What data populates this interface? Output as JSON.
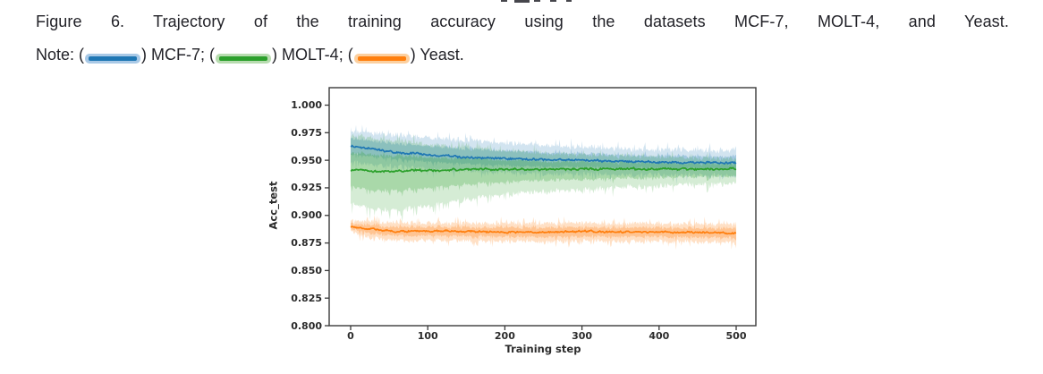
{
  "caption": {
    "line1": "Figure 6. Trajectory of the training accuracy using the datasets MCF-7, MOLT-4, and Yeast.",
    "note_prefix": "Note: (",
    "after_swatch1": ") MCF-7; (",
    "after_swatch2": ") MOLT-4; (",
    "after_swatch3": ") Yeast."
  },
  "legend": {
    "entries": [
      {
        "label": "MCF-7",
        "color": "#1f77b4",
        "halo": "#a9c9e6"
      },
      {
        "label": "MOLT-4",
        "color": "#2ca02c",
        "halo": "#b8dcb0"
      },
      {
        "label": "Yeast",
        "color": "#ff7f0e",
        "halo": "#fcd0a0"
      }
    ]
  },
  "chart_data": {
    "type": "line",
    "title": "",
    "xlabel": "Training step",
    "ylabel": "Acc_test",
    "xlim": [
      -28,
      525
    ],
    "ylim": [
      0.8,
      1.016
    ],
    "x_ticks": [
      0,
      100,
      200,
      300,
      400,
      500
    ],
    "y_ticks": [
      1.0,
      0.975,
      0.95,
      0.925,
      0.9,
      0.875,
      0.85,
      0.825,
      0.8
    ],
    "y_tick_labels": [
      "1.000",
      "0.975",
      "0.950",
      "0.925",
      "0.900",
      "0.875",
      "0.850",
      "0.825",
      "0.800"
    ],
    "grid": false,
    "legend_position": "caption-note",
    "series": [
      {
        "name": "MCF-7",
        "color": "#1f77b4",
        "mean": [
          [
            0,
            0.9625
          ],
          [
            30,
            0.96
          ],
          [
            60,
            0.9575
          ],
          [
            100,
            0.955
          ],
          [
            150,
            0.9525
          ],
          [
            200,
            0.9515
          ],
          [
            250,
            0.9505
          ],
          [
            300,
            0.95
          ],
          [
            350,
            0.949
          ],
          [
            400,
            0.9485
          ],
          [
            450,
            0.948
          ],
          [
            500,
            0.9475
          ]
        ],
        "band_top": [
          [
            0,
            0.9765
          ],
          [
            50,
            0.9735
          ],
          [
            100,
            0.9705
          ],
          [
            150,
            0.968
          ],
          [
            200,
            0.9655
          ],
          [
            250,
            0.9635
          ],
          [
            300,
            0.962
          ],
          [
            350,
            0.9605
          ],
          [
            400,
            0.9595
          ],
          [
            450,
            0.959
          ],
          [
            500,
            0.9585
          ]
        ],
        "band_bottom": [
          [
            0,
            0.9485
          ],
          [
            50,
            0.945
          ],
          [
            100,
            0.9425
          ],
          [
            150,
            0.9405
          ],
          [
            200,
            0.939
          ],
          [
            250,
            0.938
          ],
          [
            300,
            0.9375
          ],
          [
            350,
            0.937
          ],
          [
            400,
            0.9365
          ],
          [
            450,
            0.9365
          ],
          [
            500,
            0.936
          ]
        ],
        "noise": {
          "line": 0.0015,
          "band": 0.0032,
          "spike": 0.0065,
          "early_spike": 0,
          "early_until": 0
        },
        "band_alpha_wide": 0.2,
        "band_alpha_tight": 0.26
      },
      {
        "name": "MOLT-4",
        "color": "#2ca02c",
        "mean": [
          [
            0,
            0.9415
          ],
          [
            30,
            0.9398
          ],
          [
            60,
            0.9402
          ],
          [
            100,
            0.9408
          ],
          [
            150,
            0.9413
          ],
          [
            200,
            0.9417
          ],
          [
            300,
            0.942
          ],
          [
            400,
            0.942
          ],
          [
            500,
            0.942
          ]
        ],
        "band_top": [
          [
            0,
            0.9725
          ],
          [
            50,
            0.968
          ],
          [
            100,
            0.9645
          ],
          [
            150,
            0.961
          ],
          [
            200,
            0.9585
          ],
          [
            250,
            0.9565
          ],
          [
            300,
            0.955
          ],
          [
            350,
            0.9535
          ],
          [
            400,
            0.9525
          ],
          [
            450,
            0.952
          ],
          [
            500,
            0.9515
          ]
        ],
        "band_bottom": [
          [
            0,
            0.9095
          ],
          [
            40,
            0.9045
          ],
          [
            80,
            0.9065
          ],
          [
            120,
            0.9115
          ],
          [
            160,
            0.9155
          ],
          [
            200,
            0.919
          ],
          [
            250,
            0.9215
          ],
          [
            300,
            0.9235
          ],
          [
            350,
            0.9255
          ],
          [
            400,
            0.927
          ],
          [
            450,
            0.928
          ],
          [
            500,
            0.929
          ]
        ],
        "noise": {
          "line": 0.0015,
          "band": 0.0032,
          "spike": 0.007,
          "early_spike": 0.01,
          "early_until": 130
        },
        "band_alpha_wide": 0.2,
        "band_alpha_tight": 0.26
      },
      {
        "name": "Yeast",
        "color": "#ff7f0e",
        "mean": [
          [
            0,
            0.8895
          ],
          [
            30,
            0.8872
          ],
          [
            60,
            0.8855
          ],
          [
            100,
            0.886
          ],
          [
            150,
            0.8855
          ],
          [
            200,
            0.885
          ],
          [
            250,
            0.8845
          ],
          [
            300,
            0.8855
          ],
          [
            350,
            0.885
          ],
          [
            400,
            0.885
          ],
          [
            450,
            0.8845
          ],
          [
            500,
            0.884
          ]
        ],
        "band_top": [
          [
            0,
            0.8945
          ],
          [
            50,
            0.8935
          ],
          [
            100,
            0.893
          ],
          [
            200,
            0.8925
          ],
          [
            300,
            0.893
          ],
          [
            400,
            0.8925
          ],
          [
            500,
            0.892
          ]
        ],
        "band_bottom": [
          [
            0,
            0.8845
          ],
          [
            30,
            0.8795
          ],
          [
            60,
            0.877
          ],
          [
            100,
            0.8775
          ],
          [
            150,
            0.877
          ],
          [
            200,
            0.8765
          ],
          [
            250,
            0.876
          ],
          [
            300,
            0.877
          ],
          [
            350,
            0.8765
          ],
          [
            400,
            0.8765
          ],
          [
            450,
            0.876
          ],
          [
            500,
            0.8755
          ]
        ],
        "noise": {
          "line": 0.0013,
          "band": 0.0028,
          "spike": 0.006,
          "early_spike": 0,
          "early_until": 0
        },
        "band_alpha_wide": 0.24,
        "band_alpha_tight": 0.28
      }
    ]
  }
}
